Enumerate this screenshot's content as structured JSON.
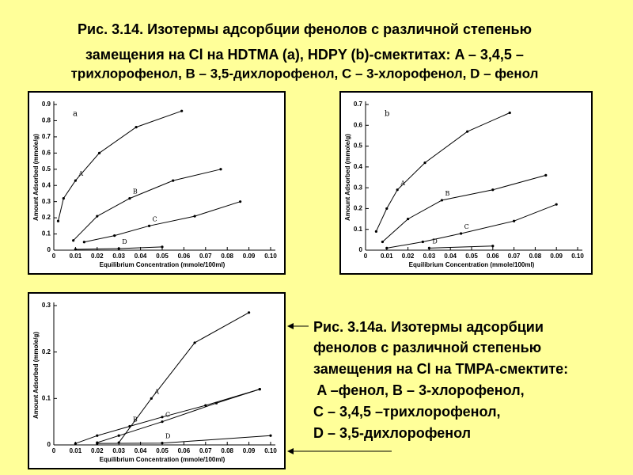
{
  "title_lines": [
    "Рис. 3.14. Изотермы адсорбции фенолов с различной степенью",
    "замещения на Cl на HDTMA (a), HDPY (b)-смектитах:  A – 3,4,5 –",
    "трихлорофенол, B – 3,5-дихлорофенол, C – 3-хлорофенол, D – фенол"
  ],
  "caption_lines": [
    "Рис. 3.14а. Изотермы адсорбции",
    "фенолов с различной степенью",
    "замещения на Cl на TMPA-смектите:",
    " A –фенол, B – 3-хлорофенол,",
    "C – 3,4,5 –трихлорофенол,",
    "D – 3,5-дихлорофенол"
  ],
  "chart_data": [
    {
      "type": "line",
      "annotation": "a",
      "x_label": "Equilibrium Concentration (mmole/100ml)",
      "y_label": "Amount Adsorbed (mmole/g)",
      "xlim": [
        0,
        0.1
      ],
      "xticks": [
        0,
        0.01,
        0.02,
        0.03,
        0.04,
        0.05,
        0.06,
        0.07,
        0.08,
        0.09,
        {
          "value": 0.1,
          "label": "0.10"
        }
      ],
      "ylim": [
        0,
        0.9
      ],
      "yticks": [
        0,
        0.1,
        0.2,
        0.3,
        0.4,
        0.5,
        0.6,
        0.7,
        0.8,
        0.9
      ],
      "color": "#000000",
      "series": [
        {
          "name": "A",
          "x": [
            0.002,
            0.0045,
            0.01,
            0.021,
            0.038,
            0.059
          ],
          "values": [
            0.18,
            0.32,
            0.43,
            0.6,
            0.76,
            0.86
          ]
        },
        {
          "name": "B",
          "x": [
            0.009,
            0.02,
            0.035,
            0.055,
            0.077
          ],
          "values": [
            0.06,
            0.21,
            0.32,
            0.43,
            0.5
          ]
        },
        {
          "name": "C",
          "x": [
            0.014,
            0.028,
            0.044,
            0.065,
            0.086
          ],
          "values": [
            0.05,
            0.09,
            0.15,
            0.21,
            0.3
          ]
        },
        {
          "name": "D",
          "x": [
            0.01,
            0.03,
            0.05
          ],
          "values": [
            0.005,
            0.01,
            0.02
          ]
        }
      ]
    },
    {
      "type": "line",
      "annotation": "b",
      "x_label": "Equilibrium Concentration (mmole/100ml)",
      "y_label": "Amount Adsorbed (mmole/g)",
      "xlim": [
        0,
        0.1
      ],
      "xticks": [
        0,
        0.01,
        0.02,
        0.03,
        0.04,
        0.05,
        0.06,
        0.07,
        0.08,
        0.09,
        {
          "value": 0.1,
          "label": "0.10"
        }
      ],
      "ylim": [
        0,
        0.7
      ],
      "yticks": [
        0,
        0.1,
        0.2,
        0.3,
        0.4,
        0.5,
        0.6,
        0.7
      ],
      "color": "#000000",
      "series": [
        {
          "name": "A",
          "x": [
            0.005,
            0.01,
            0.015,
            0.028,
            0.048,
            0.068
          ],
          "values": [
            0.09,
            0.2,
            0.29,
            0.42,
            0.57,
            0.66
          ]
        },
        {
          "name": "B",
          "x": [
            0.008,
            0.02,
            0.036,
            0.06,
            0.085
          ],
          "values": [
            0.04,
            0.15,
            0.24,
            0.29,
            0.36
          ]
        },
        {
          "name": "C",
          "x": [
            0.01,
            0.027,
            0.045,
            0.07,
            0.09
          ],
          "values": [
            0.01,
            0.04,
            0.08,
            0.14,
            0.22
          ]
        },
        {
          "name": "D",
          "x": [
            0.03,
            0.06
          ],
          "values": [
            0.01,
            0.02
          ]
        }
      ]
    },
    {
      "type": "line",
      "x_label": "Equilibrium Concentration (mmole/100ml)",
      "y_label": "Amount Adsorbed (mmole/g)",
      "xlim": [
        0,
        0.1
      ],
      "xticks": [
        0,
        0.01,
        0.02,
        0.03,
        0.04,
        0.05,
        0.06,
        0.07,
        0.08,
        0.09,
        {
          "value": 0.1,
          "label": "0.10"
        }
      ],
      "ylim": [
        0,
        0.3
      ],
      "yticks": [
        0,
        0.1,
        0.2,
        0.3
      ],
      "color": "#000000",
      "series": [
        {
          "name": "A",
          "x": [
            0.03,
            0.045,
            0.065,
            0.09
          ],
          "values": [
            0.005,
            0.1,
            0.22,
            0.285
          ]
        },
        {
          "name": "B",
          "x": [
            0.01,
            0.02,
            0.035,
            0.05,
            0.07,
            0.095
          ],
          "values": [
            0.003,
            0.02,
            0.04,
            0.06,
            0.085,
            0.12
          ]
        },
        {
          "name": "C",
          "x": [
            0.02,
            0.03,
            0.05,
            0.075,
            0.095
          ],
          "values": [
            0.005,
            0.02,
            0.05,
            0.09,
            0.12
          ]
        },
        {
          "name": "D",
          "x": [
            0.02,
            0.05,
            0.1
          ],
          "values": [
            0.003,
            0.004,
            0.02
          ]
        }
      ]
    }
  ]
}
